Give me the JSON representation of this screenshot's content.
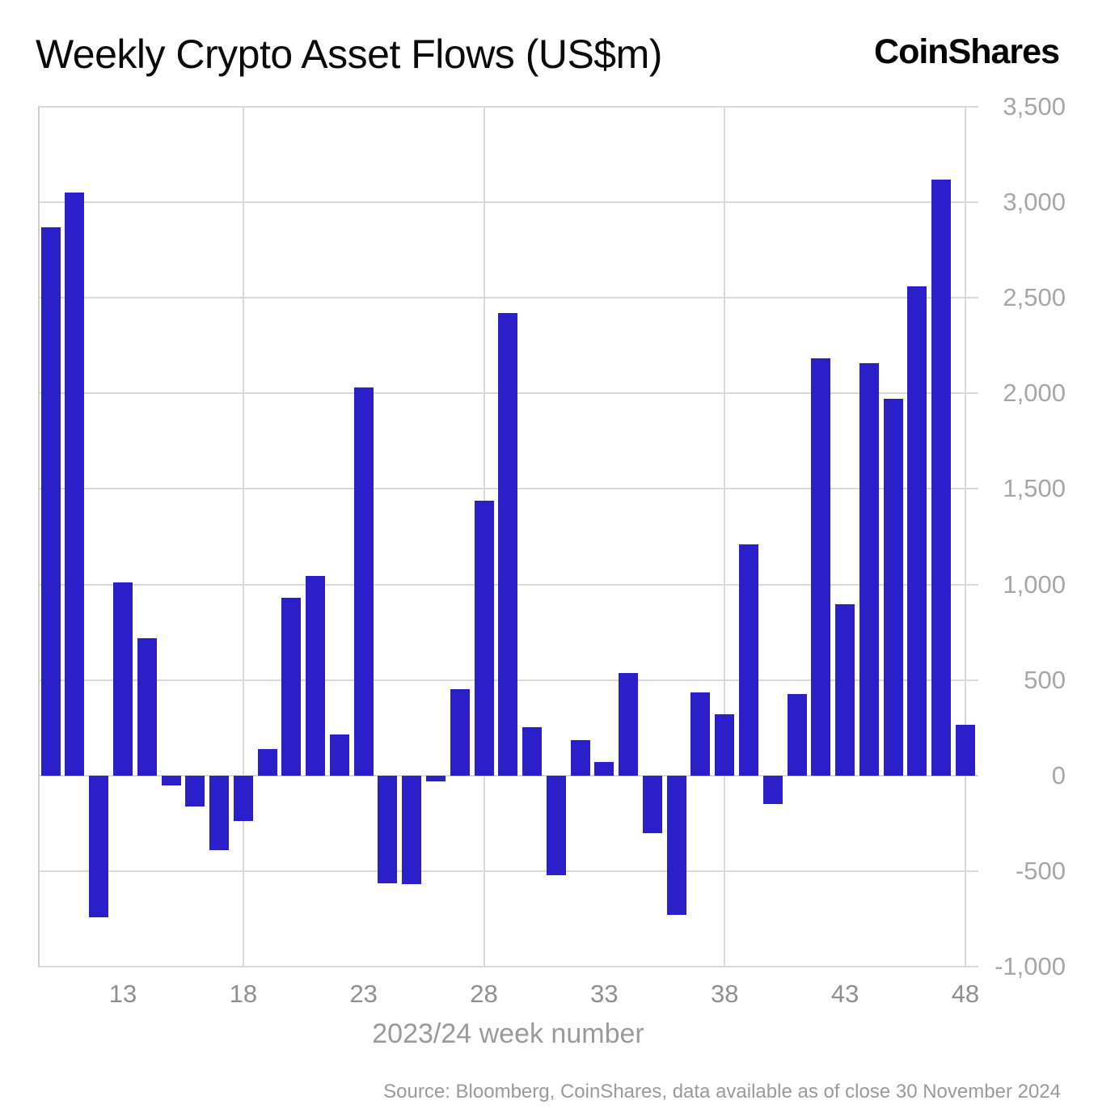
{
  "header": {
    "title": "Weekly Crypto Asset Flows (US$m)",
    "logo": "CoinShares"
  },
  "chart_data": {
    "type": "bar",
    "title": "Weekly Crypto Asset Flows (US$m)",
    "xlabel": "2023/24 week number",
    "ylabel": "",
    "ylim": [
      -1000,
      3500
    ],
    "ytick_interval": 500,
    "ytick_labels": [
      "3,500",
      "3,000",
      "2,500",
      "2,000",
      "1,500",
      "1,000",
      "500",
      "0",
      "-500",
      "-1,000"
    ],
    "xtick_weeks": [
      13,
      18,
      23,
      28,
      33,
      38,
      43,
      48
    ],
    "vgrid_weeks": [
      18,
      28,
      38,
      48
    ],
    "bar_color": "#2b1fc9",
    "grid_color": "#d9d9d9",
    "legend_position": "none",
    "grid": true,
    "categories": [
      10,
      11,
      12,
      13,
      14,
      15,
      16,
      17,
      18,
      19,
      20,
      21,
      22,
      23,
      24,
      25,
      26,
      27,
      28,
      29,
      30,
      31,
      32,
      33,
      34,
      35,
      36,
      37,
      38,
      39,
      40,
      41,
      42,
      43,
      44,
      45,
      46,
      47,
      48
    ],
    "values": [
      2870,
      3050,
      -740,
      1010,
      720,
      -50,
      -160,
      -390,
      -240,
      140,
      930,
      1045,
      215,
      2030,
      -565,
      -570,
      -30,
      450,
      1440,
      2420,
      255,
      -520,
      185,
      70,
      535,
      -300,
      -730,
      435,
      320,
      1210,
      -150,
      425,
      2185,
      895,
      2160,
      1970,
      2560,
      3120,
      265
    ]
  },
  "footer": {
    "source": "Source: Bloomberg, CoinShares, data available as of close 30 November 2024"
  }
}
